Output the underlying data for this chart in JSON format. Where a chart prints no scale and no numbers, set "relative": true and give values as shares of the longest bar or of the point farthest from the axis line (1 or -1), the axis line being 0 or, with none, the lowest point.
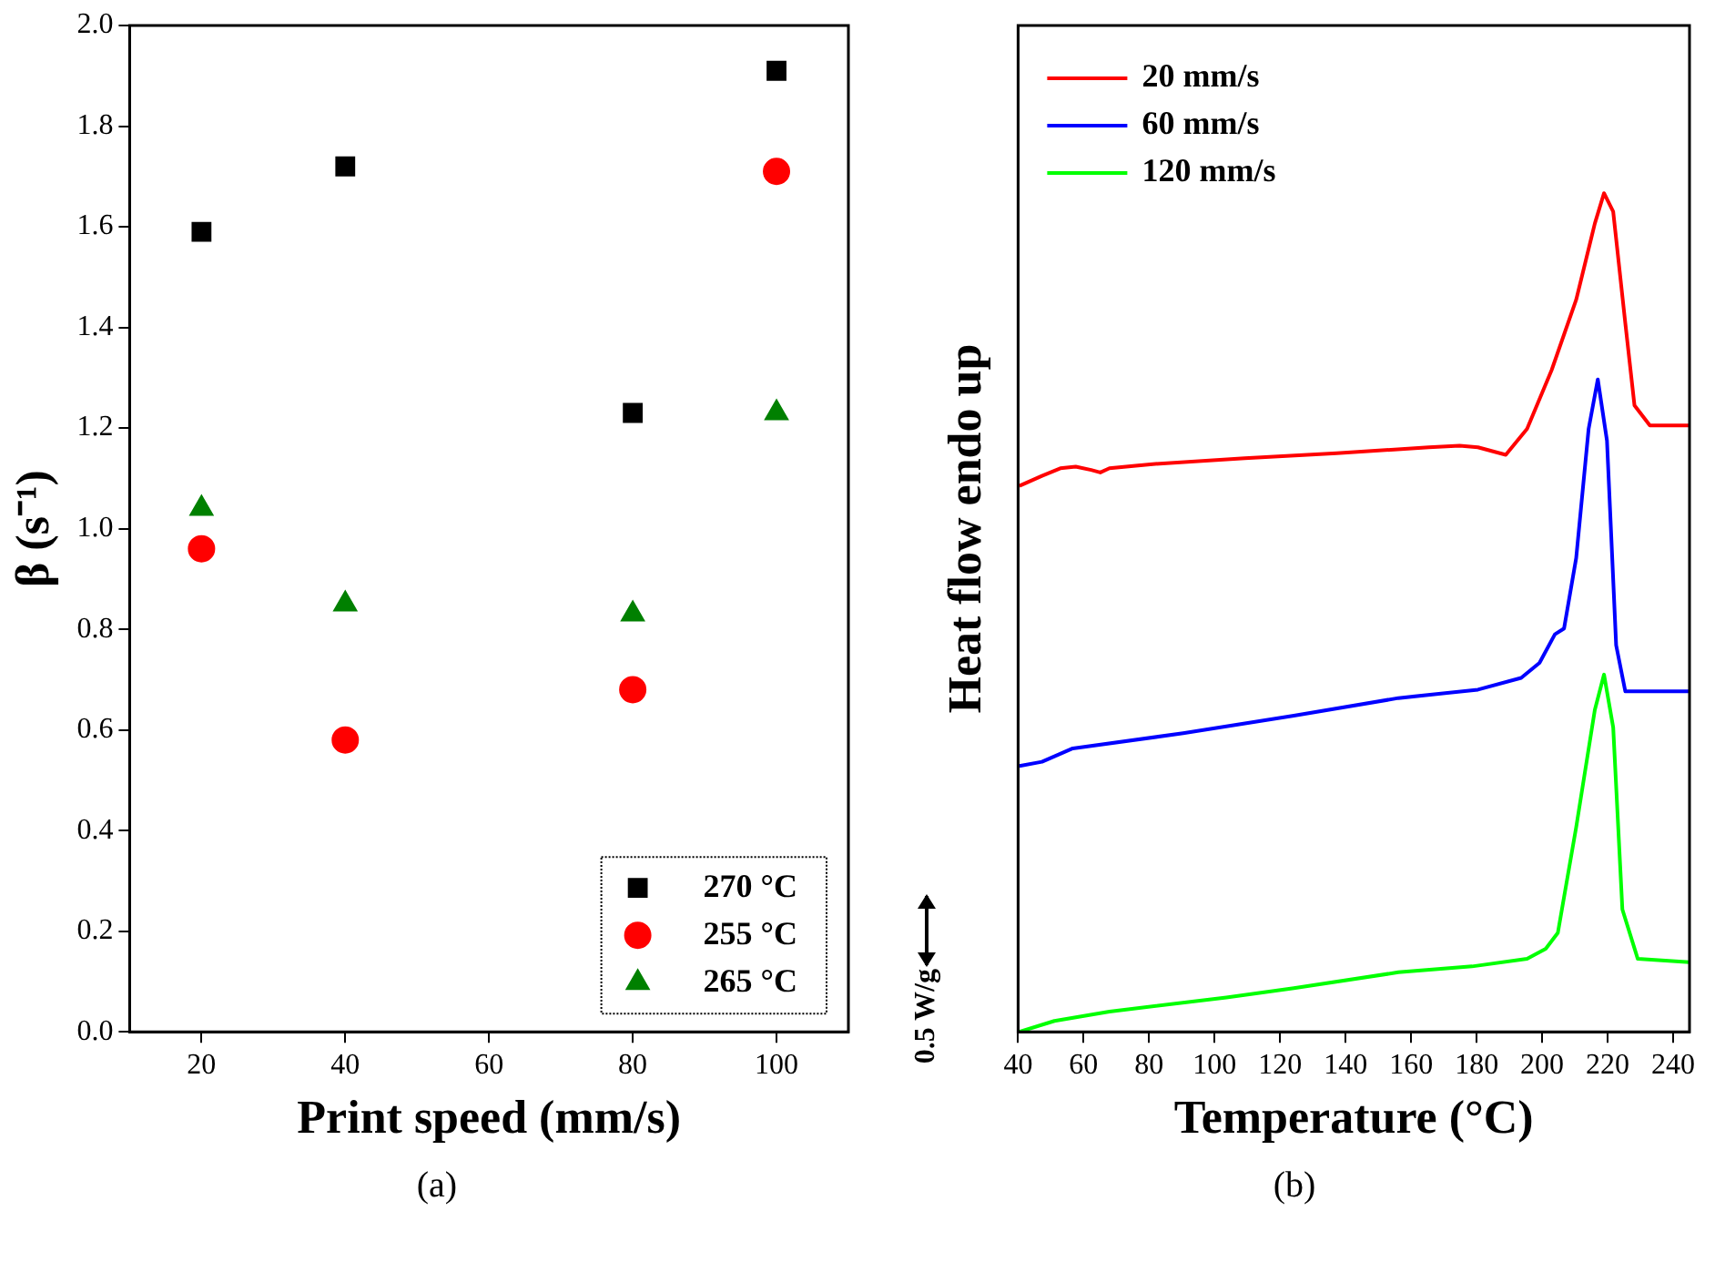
{
  "chart_data": [
    {
      "type": "scatter",
      "xlabel": "Print speed (mm/s)",
      "ylabel": "β (s⁻¹)",
      "xlim": [
        10,
        110
      ],
      "xticks": [
        20,
        40,
        60,
        80,
        100
      ],
      "ylim": [
        0,
        2
      ],
      "yticks": [
        {
          "value": 0,
          "label": "0.0"
        },
        0.2,
        0.4,
        0.6,
        0.8,
        {
          "value": 1,
          "label": "1.0"
        },
        1.2,
        1.4,
        1.6,
        1.8,
        {
          "value": 2,
          "label": "2.0"
        }
      ],
      "grid": false,
      "legend": "bottom right",
      "annotations": [
        "(a)"
      ],
      "x": [
        20,
        40,
        80,
        100
      ],
      "series": [
        {
          "name": "270 °C",
          "color": "#000000",
          "marker": "square",
          "values": [
            1.59,
            1.72,
            1.23,
            1.91
          ]
        },
        {
          "name": "255 °C",
          "color": "#ff0000",
          "marker": "circle",
          "values": [
            0.96,
            0.58,
            0.68,
            1.71
          ]
        },
        {
          "name": "265 °C",
          "color": "#008000",
          "marker": "triangle",
          "values": [
            1.04,
            0.85,
            0.83,
            1.23
          ]
        }
      ]
    },
    {
      "type": "line",
      "xlabel": "Temperature (°C)",
      "ylabel": "Heat flow endo up",
      "relative": true,
      "xlim": [
        40,
        245
      ],
      "xticks": [
        40,
        60,
        80,
        100,
        120,
        140,
        160,
        180,
        200,
        220,
        240
      ],
      "grid": false,
      "legend": "top left",
      "marker": "none",
      "annotations": [
        "0.5 W/g",
        "(b)"
      ],
      "series": [
        {
          "name": "20 mm/s",
          "color": "#ff0000",
          "x": [
            40.4,
            47.3,
            52.9,
            57.6,
            62.3,
            65.1,
            67.9,
            81.1,
            109.2,
            137.3,
            165.4,
            174.8,
            180.4,
            188.9,
            195.4,
            202.9,
            210.4,
            216.1,
            218.9,
            221.7,
            225.4,
            228.2,
            232.9,
            245
          ],
          "values": [
            0.651,
            0.663,
            0.672,
            0.674,
            0.67,
            0.667,
            0.672,
            0.677,
            0.684,
            0.69,
            0.697,
            0.699,
            0.697,
            0.688,
            0.719,
            0.789,
            0.873,
            0.964,
            1.0,
            0.978,
            0.845,
            0.747,
            0.723,
            0.723
          ]
        },
        {
          "name": "60 mm/s",
          "color": "#0000ff",
          "x": [
            40.4,
            47.3,
            56.7,
            90.4,
            124.2,
            156.1,
            180.4,
            193.6,
            199.2,
            203.9,
            206.7,
            210.4,
            214.2,
            217.0,
            219.8,
            222.6,
            225.4,
            245
          ],
          "values": [
            0.317,
            0.322,
            0.338,
            0.356,
            0.377,
            0.398,
            0.408,
            0.422,
            0.44,
            0.474,
            0.481,
            0.565,
            0.719,
            0.778,
            0.705,
            0.461,
            0.406,
            0.406
          ]
        },
        {
          "name": "120 mm/s",
          "color": "#00ff00",
          "x": [
            40.4,
            51.1,
            67.9,
            103.6,
            124.2,
            156.1,
            178.6,
            195.4,
            201.1,
            204.8,
            210.4,
            216.1,
            218.9,
            221.7,
            224.5,
            229.2,
            245
          ],
          "values": [
            0,
            0.013,
            0.024,
            0.041,
            0.052,
            0.071,
            0.078,
            0.087,
            0.099,
            0.118,
            0.244,
            0.384,
            0.426,
            0.363,
            0.146,
            0.087,
            0.083
          ]
        }
      ]
    }
  ]
}
